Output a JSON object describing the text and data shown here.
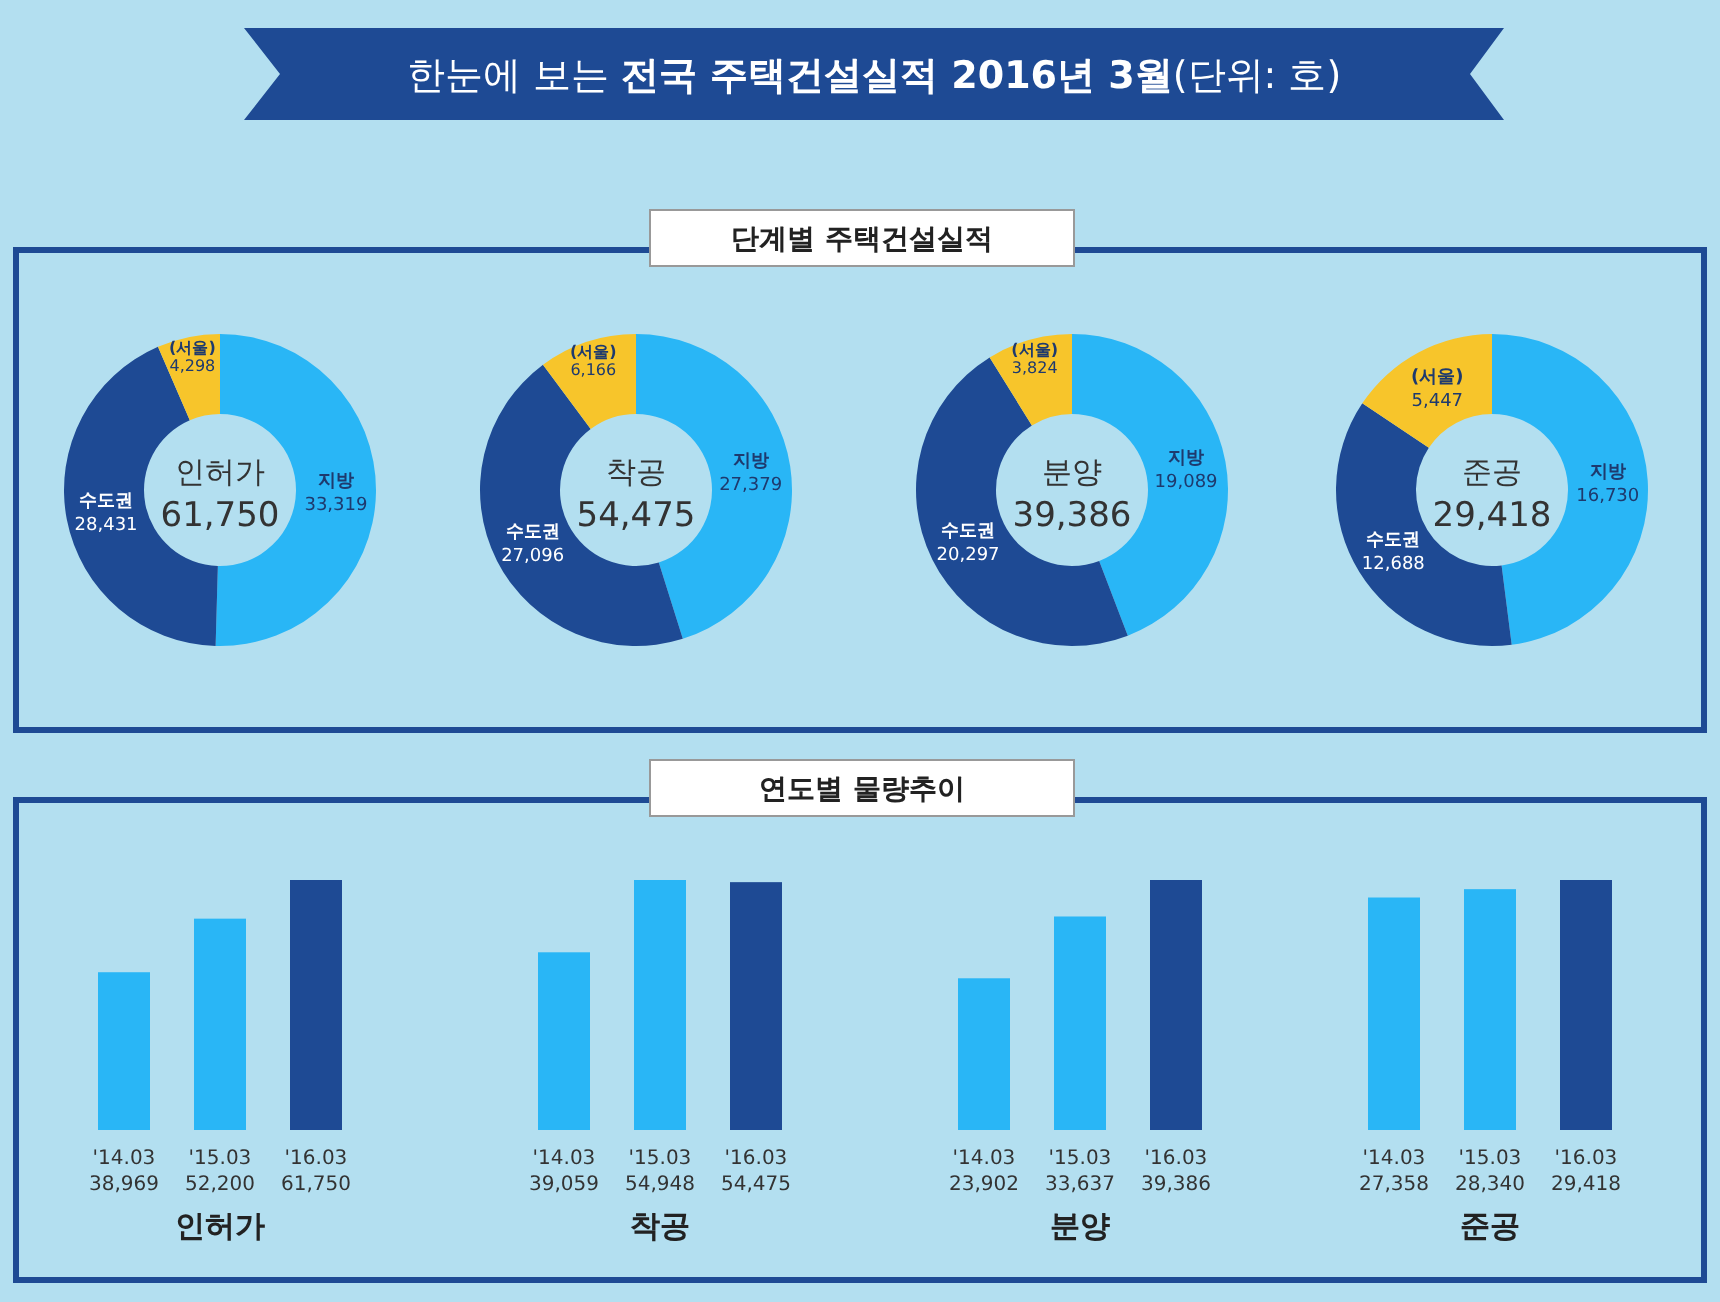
{
  "chart_data": [
    {
      "type": "donut",
      "title": "인허가",
      "annotations": [
        "61,750",
        "한눈에 보는 **전국 주택건설실적 2016년 3월**(단위: 호)",
        "단계별 주택건설실적",
        "연도별 물량추이"
      ],
      "categories": [
        "지방",
        "수도권",
        "(서울)"
      ],
      "values": [
        33319,
        28431,
        4298
      ],
      "value_labels": [
        "33,319",
        "28,431",
        "4,298"
      ],
      "colors": [
        "#29b6f6",
        "#1e4a94",
        "#f7c52b"
      ]
    },
    {
      "type": "donut",
      "title": "착공",
      "annotations": [
        "54,475"
      ],
      "categories": [
        "지방",
        "수도권",
        "(서울)"
      ],
      "values": [
        27379,
        27096,
        6166
      ],
      "value_labels": [
        "27,379",
        "27,096",
        "6,166"
      ],
      "colors": [
        "#29b6f6",
        "#1e4a94",
        "#f7c52b"
      ]
    },
    {
      "type": "donut",
      "title": "분양",
      "annotations": [
        "39,386"
      ],
      "categories": [
        "지방",
        "수도권",
        "(서울)"
      ],
      "values": [
        19089,
        20297,
        3824
      ],
      "value_labels": [
        "19,089",
        "20,297",
        "3,824"
      ],
      "colors": [
        "#29b6f6",
        "#1e4a94",
        "#f7c52b"
      ]
    },
    {
      "type": "donut",
      "title": "준공",
      "annotations": [
        "29,418"
      ],
      "categories": [
        "지방",
        "수도권",
        "(서울)"
      ],
      "values": [
        16730,
        12688,
        5447
      ],
      "value_labels": [
        "16,730",
        "12,688",
        "5,447"
      ],
      "colors": [
        "#29b6f6",
        "#1e4a94",
        "#f7c52b"
      ]
    },
    {
      "type": "bar",
      "title": "인허가",
      "categories": [
        "'14.03",
        "'15.03",
        "'16.03"
      ],
      "values": [
        38969,
        52200,
        61750
      ],
      "data_labels": true,
      "value_labels": [
        "38,969",
        "52,200",
        "61,750"
      ],
      "colors": [
        "#29b6f6",
        "#29b6f6",
        "#1e4a94"
      ]
    },
    {
      "type": "bar",
      "title": "착공",
      "categories": [
        "'14.03",
        "'15.03",
        "'16.03"
      ],
      "values": [
        39059,
        54948,
        54475
      ],
      "data_labels": true,
      "value_labels": [
        "39,059",
        "54,948",
        "54,475"
      ],
      "colors": [
        "#29b6f6",
        "#29b6f6",
        "#1e4a94"
      ]
    },
    {
      "type": "bar",
      "title": "분양",
      "categories": [
        "'14.03",
        "'15.03",
        "'16.03"
      ],
      "values": [
        23902,
        33637,
        39386
      ],
      "data_labels": true,
      "value_labels": [
        "23,902",
        "33,637",
        "39,386"
      ],
      "colors": [
        "#29b6f6",
        "#29b6f6",
        "#1e4a94"
      ]
    },
    {
      "type": "bar",
      "title": "준공",
      "categories": [
        "'14.03",
        "'15.03",
        "'16.03"
      ],
      "values": [
        27358,
        28340,
        29418
      ],
      "data_labels": true,
      "value_labels": [
        "27,358",
        "28,340",
        "29,418"
      ],
      "colors": [
        "#29b6f6",
        "#29b6f6",
        "#1e4a94"
      ]
    }
  ]
}
